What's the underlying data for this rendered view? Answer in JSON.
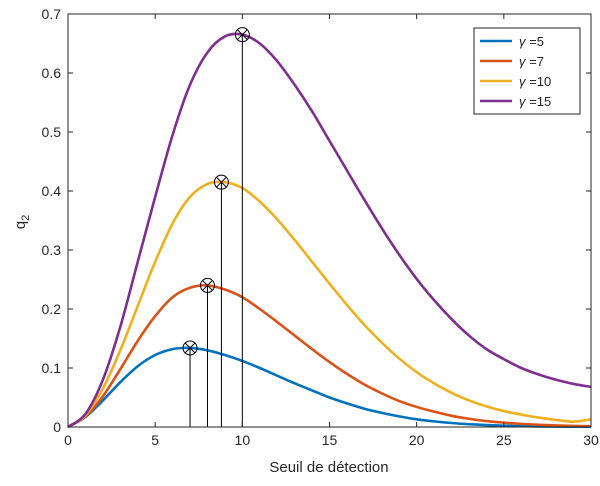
{
  "chart_data": {
    "type": "line",
    "title": "",
    "xlabel": "Seuil de détection",
    "ylabel_main": "q",
    "ylabel_sub": "2",
    "xlim": [
      0,
      30
    ],
    "ylim": [
      0,
      0.7
    ],
    "xticks": [
      0,
      5,
      10,
      15,
      20,
      25,
      30
    ],
    "yticks": [
      0,
      0.1,
      0.2,
      0.3,
      0.4,
      0.5,
      0.6,
      0.7
    ],
    "xtick_labels": [
      "0",
      "5",
      "10",
      "15",
      "20",
      "25",
      "30"
    ],
    "ytick_labels": [
      "0",
      "0.1",
      "0.2",
      "0.3",
      "0.4",
      "0.5",
      "0.6",
      "0.7"
    ],
    "grid": false,
    "legend_position": "top-right",
    "legend_symbol": "γ",
    "series": [
      {
        "name": "=5",
        "color": "#0072BD",
        "x": [
          0,
          1,
          2,
          3,
          4,
          5,
          6,
          7,
          8,
          9,
          10,
          11,
          12,
          13,
          14,
          15,
          16,
          17,
          18,
          19,
          20,
          21,
          22,
          23,
          24,
          25,
          26,
          27,
          28,
          29,
          30
        ],
        "y": [
          0,
          0.017,
          0.045,
          0.076,
          0.103,
          0.122,
          0.132,
          0.134,
          0.13,
          0.122,
          0.112,
          0.1,
          0.087,
          0.074,
          0.062,
          0.05,
          0.04,
          0.031,
          0.024,
          0.018,
          0.013,
          0.0095,
          0.0068,
          0.0048,
          0.0033,
          0.0023,
          0.0015,
          0.001,
          0.0007,
          0.0005,
          0.0003
        ],
        "peak": {
          "x": 7,
          "y": 0.134
        }
      },
      {
        "name": "=7",
        "color": "#D95319",
        "x": [
          0,
          1,
          2,
          3,
          4,
          5,
          6,
          7,
          8,
          9,
          10,
          11,
          12,
          13,
          14,
          15,
          16,
          17,
          18,
          19,
          20,
          21,
          22,
          23,
          24,
          25,
          26,
          27,
          28,
          29,
          30
        ],
        "y": [
          0,
          0.018,
          0.052,
          0.098,
          0.146,
          0.188,
          0.22,
          0.236,
          0.24,
          0.233,
          0.22,
          0.2,
          0.178,
          0.155,
          0.132,
          0.11,
          0.09,
          0.072,
          0.057,
          0.044,
          0.034,
          0.026,
          0.019,
          0.014,
          0.01,
          0.0074,
          0.0053,
          0.0038,
          0.0027,
          0.0019,
          0.0013
        ],
        "peak": {
          "x": 8,
          "y": 0.24
        }
      },
      {
        "name": "=10",
        "color": "#EDB120",
        "x": [
          0,
          1,
          2,
          3,
          4,
          5,
          6,
          7,
          8,
          9,
          10,
          11,
          12,
          13,
          14,
          15,
          16,
          17,
          18,
          19,
          20,
          21,
          22,
          23,
          24,
          25,
          26,
          27,
          28,
          29,
          30
        ],
        "y": [
          0,
          0.02,
          0.065,
          0.13,
          0.205,
          0.28,
          0.345,
          0.39,
          0.412,
          0.415,
          0.405,
          0.382,
          0.352,
          0.317,
          0.28,
          0.243,
          0.207,
          0.173,
          0.143,
          0.116,
          0.093,
          0.074,
          0.058,
          0.045,
          0.035,
          0.027,
          0.021,
          0.016,
          0.012,
          0.009,
          0.013
        ],
        "peak": {
          "x": 8.8,
          "y": 0.415
        }
      },
      {
        "name": "=15",
        "color": "#7E2F8E",
        "x": [
          0,
          1,
          2,
          3,
          4,
          5,
          6,
          7,
          8,
          9,
          10,
          11,
          12,
          13,
          14,
          15,
          16,
          17,
          18,
          19,
          20,
          21,
          22,
          23,
          24,
          25,
          26,
          27,
          28,
          29,
          30
        ],
        "y": [
          0,
          0.022,
          0.08,
          0.17,
          0.28,
          0.39,
          0.495,
          0.58,
          0.635,
          0.662,
          0.665,
          0.65,
          0.62,
          0.58,
          0.535,
          0.485,
          0.435,
          0.385,
          0.337,
          0.292,
          0.251,
          0.215,
          0.183,
          0.155,
          0.132,
          0.115,
          0.1,
          0.089,
          0.08,
          0.073,
          0.068
        ],
        "peak": {
          "x": 10,
          "y": 0.665
        }
      }
    ]
  }
}
